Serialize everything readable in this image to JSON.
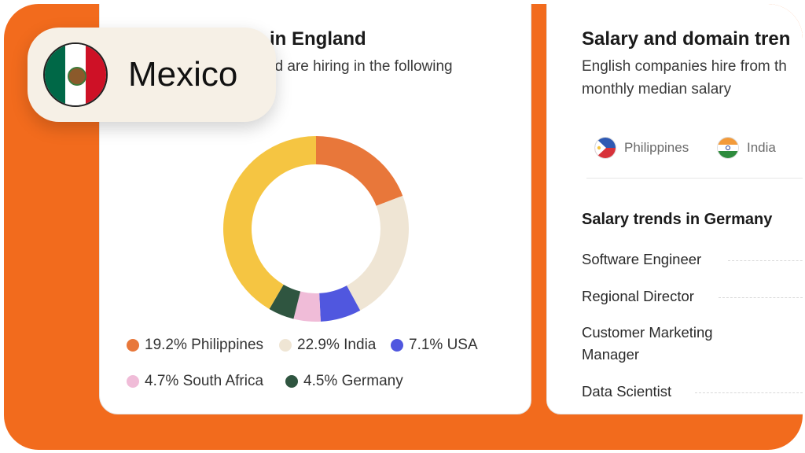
{
  "left_card": {
    "title": "ts in England",
    "subtitle": "nd are hiring in the following"
  },
  "badge": {
    "country": "Mexico",
    "flag_icon": "mexico-flag-icon"
  },
  "chart_data": {
    "type": "pie",
    "categories": [
      "Philippines",
      "India",
      "USA",
      "South Africa",
      "Germany"
    ],
    "values": [
      19.2,
      22.9,
      7.1,
      4.7,
      4.5
    ],
    "remainder_value": 41.6,
    "colors": [
      "#E8773A",
      "#EFE5D4",
      "#5057DF",
      "#F0BCD8",
      "#2F5540"
    ],
    "remainder_color": "#F5C542",
    "legend_labels": [
      "19.2% Philippines",
      "22.9% India",
      "7.1% USA",
      "4.7% South Africa",
      "4.5% Germany"
    ],
    "legend_placement": "bottom"
  },
  "right_card": {
    "title": "Salary and domain tren",
    "subtitle_line1": "English companies hire from th",
    "subtitle_line2": "monthly median salary",
    "countries": [
      {
        "name": "Philippines",
        "icon": "philippines-flag-icon"
      },
      {
        "name": "India",
        "icon": "india-flag-icon"
      }
    ],
    "trends_title": "Salary trends in Germany",
    "roles": [
      {
        "line1": "Software Engineer",
        "line2": ""
      },
      {
        "line1": "Regional Director",
        "line2": ""
      },
      {
        "line1": "Customer Marketing",
        "line2": "Manager"
      },
      {
        "line1": "Data Scientist",
        "line2": ""
      }
    ]
  },
  "colors": {
    "accent_orange": "#F26B1D",
    "badge_bg": "#F6F0E6"
  }
}
